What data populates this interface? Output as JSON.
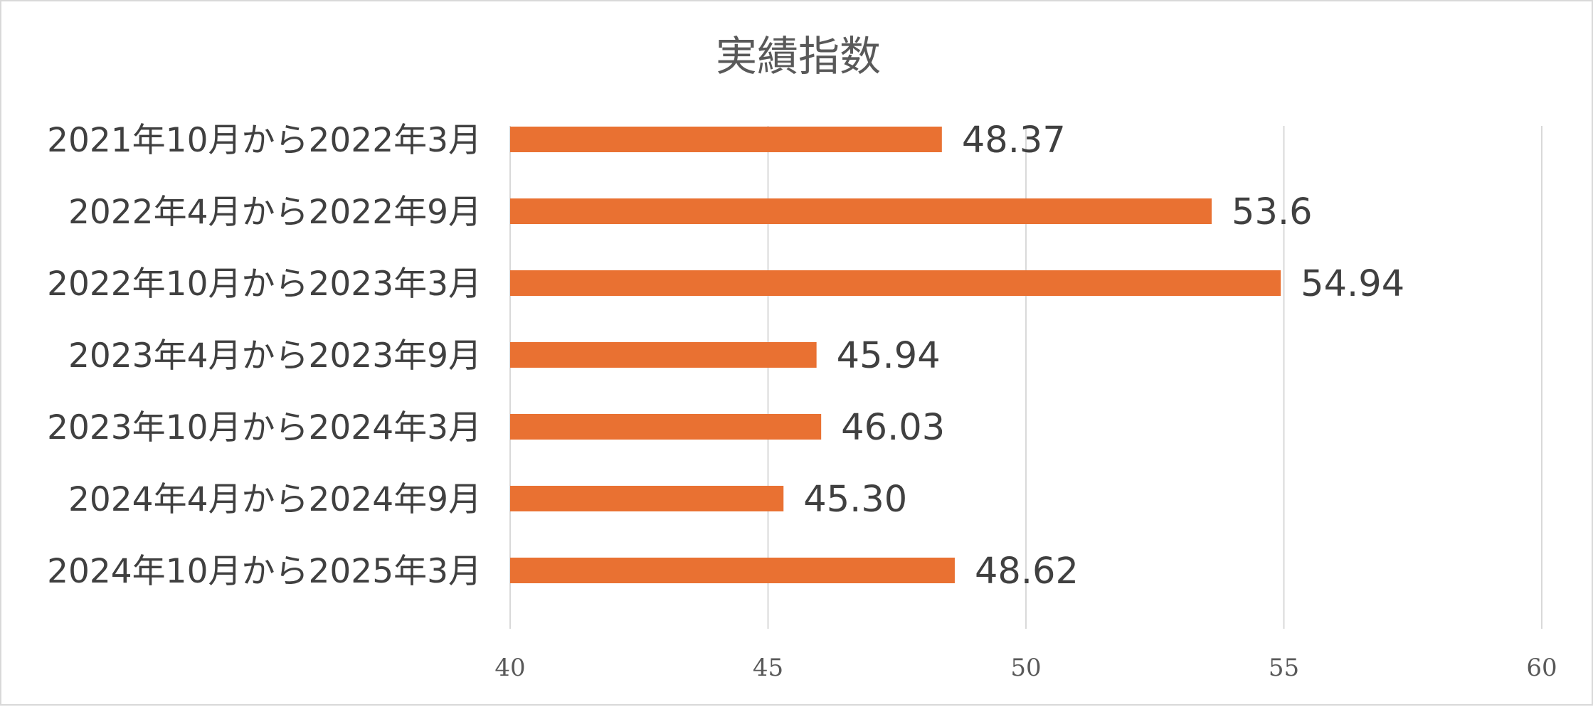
{
  "chart_data": {
    "type": "bar",
    "orientation": "horizontal",
    "title": "実績指数",
    "categories": [
      "2021年10月から2022年3月",
      "2022年4月から2022年9月",
      "2022年10月から2023年3月",
      "2023年4月から2023年9月",
      "2023年10月から2024年3月",
      "2024年4月から2024年9月",
      "2024年10月から2025年3月"
    ],
    "values": [
      48.37,
      53.6,
      54.94,
      45.94,
      46.03,
      45.3,
      48.62
    ],
    "value_labels": [
      "48.37",
      "53.6",
      "54.94",
      "45.94",
      "46.03",
      "45.30",
      "48.62"
    ],
    "xlim": [
      40,
      60
    ],
    "xticks": [
      40,
      45,
      50,
      55,
      60
    ],
    "xtick_labels": [
      "40",
      "45",
      "50",
      "55",
      "60"
    ],
    "xlabel": "",
    "ylabel": "",
    "grid": "vertical",
    "legend": "none",
    "colors": {
      "bar": "#e97132",
      "grid": "#d9d9d9",
      "title": "#595959",
      "label": "#404040"
    }
  }
}
